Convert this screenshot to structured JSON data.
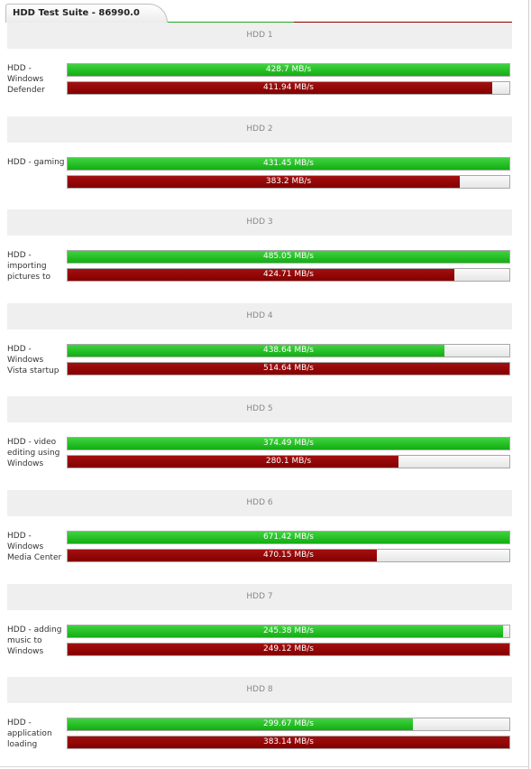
{
  "suite": {
    "title": "HDD Test Suite - 86990.0"
  },
  "colors": {
    "series_a": "#1fbf1f",
    "series_b": "#8b0000",
    "header_bg": "#efefef"
  },
  "chart_data": {
    "type": "bar",
    "orientation": "horizontal",
    "title": "HDD Test Suite - 86990.0",
    "groups": [
      {
        "header": "HDD 1",
        "label": "HDD - Windows Defender",
        "values": [
          428.7,
          411.94
        ],
        "texts": [
          "428.7 MB/s",
          "411.94 MB/s"
        ]
      },
      {
        "header": "HDD 2",
        "label": "HDD - gaming",
        "values": [
          431.45,
          383.2
        ],
        "texts": [
          "431.45 MB/s",
          "383.2 MB/s"
        ]
      },
      {
        "header": "HDD 3",
        "label": "HDD - importing pictures to Windows Photo Gallery",
        "values": [
          485.05,
          424.71
        ],
        "texts": [
          "485.05 MB/s",
          "424.71 MB/s"
        ]
      },
      {
        "header": "HDD 4",
        "label": "HDD - Windows Vista startup",
        "values": [
          438.64,
          514.64
        ],
        "texts": [
          "438.64 MB/s",
          "514.64 MB/s"
        ]
      },
      {
        "header": "HDD 5",
        "label": "HDD - video editing using Windows Movie Maker",
        "values": [
          374.49,
          280.1
        ],
        "texts": [
          "374.49 MB/s",
          "280.1 MB/s"
        ]
      },
      {
        "header": "HDD 6",
        "label": "HDD - Windows Media Center",
        "values": [
          671.42,
          470.15
        ],
        "texts": [
          "671.42 MB/s",
          "470.15 MB/s"
        ]
      },
      {
        "header": "HDD 7",
        "label": "HDD - adding music to Windows Media Player",
        "values": [
          245.38,
          249.12
        ],
        "texts": [
          "245.38 MB/s",
          "249.12 MB/s"
        ]
      },
      {
        "header": "HDD 8",
        "label": "HDD - application loading",
        "values": [
          299.67,
          383.14
        ],
        "texts": [
          "299.67 MB/s",
          "383.14 MB/s"
        ]
      }
    ],
    "units": "MB/s"
  }
}
